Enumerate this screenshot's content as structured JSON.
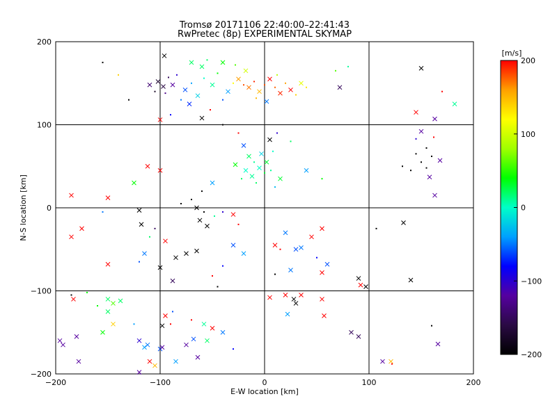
{
  "chart_data": {
    "type": "scatter",
    "title": "Tromsø 20171106 22:40:00–22:41:43",
    "subtitle": "RwPretec (8p) EXPERIMENTAL SKYMAP",
    "xlabel": "E-W location [km]",
    "ylabel": "N-S location [km]",
    "xlim": [
      -200,
      200
    ],
    "ylim": [
      -200,
      200
    ],
    "xticks": [
      -200,
      -100,
      0,
      100,
      200
    ],
    "yticks": [
      -200,
      -100,
      0,
      100,
      200
    ],
    "xtick_labels": [
      "−200",
      "−100",
      "0",
      "100",
      "200"
    ],
    "ytick_labels": [
      "−200",
      "−100",
      "0",
      "100",
      "200"
    ],
    "grid": true,
    "marker_types": [
      "dot",
      "x"
    ],
    "colorbar": {
      "label": "[m/s]",
      "range": [
        -200,
        200
      ],
      "ticks": [
        -200,
        -100,
        0,
        100,
        200
      ],
      "tick_labels": [
        "−200",
        "−100",
        "0",
        "100",
        "200"
      ],
      "colormap": [
        "#000000",
        "#2a0a44",
        "#5500a0",
        "#0000ff",
        "#00a0ff",
        "#00ffc8",
        "#00ff00",
        "#a0ff00",
        "#ffff00",
        "#ffa000",
        "#ff0000"
      ]
    },
    "points": [
      {
        "x": -102,
        "y": 152,
        "v": -170,
        "m": "x"
      },
      {
        "x": -97,
        "y": 146,
        "v": -160,
        "m": "x"
      },
      {
        "x": -92,
        "y": 157,
        "v": -150,
        "m": "dot"
      },
      {
        "x": -105,
        "y": 140,
        "v": -180,
        "m": "dot"
      },
      {
        "x": -88,
        "y": 148,
        "v": -120,
        "m": "x"
      },
      {
        "x": -95,
        "y": 138,
        "v": -130,
        "m": "dot"
      },
      {
        "x": -110,
        "y": 148,
        "v": -140,
        "m": "x"
      },
      {
        "x": -84,
        "y": 160,
        "v": -100,
        "m": "dot"
      },
      {
        "x": -76,
        "y": 142,
        "v": -60,
        "m": "x"
      },
      {
        "x": -70,
        "y": 150,
        "v": -40,
        "m": "dot"
      },
      {
        "x": -64,
        "y": 135,
        "v": -20,
        "m": "x"
      },
      {
        "x": -58,
        "y": 156,
        "v": 0,
        "m": "dot"
      },
      {
        "x": -50,
        "y": 148,
        "v": 10,
        "m": "x"
      },
      {
        "x": -45,
        "y": 162,
        "v": 40,
        "m": "dot"
      },
      {
        "x": -60,
        "y": 170,
        "v": 20,
        "m": "x"
      },
      {
        "x": -80,
        "y": 130,
        "v": -50,
        "m": "dot"
      },
      {
        "x": -72,
        "y": 125,
        "v": -70,
        "m": "x"
      },
      {
        "x": -40,
        "y": 130,
        "v": -60,
        "m": "dot"
      },
      {
        "x": -35,
        "y": 140,
        "v": -40,
        "m": "x"
      },
      {
        "x": -30,
        "y": 150,
        "v": 120,
        "m": "dot"
      },
      {
        "x": -25,
        "y": 155,
        "v": 160,
        "m": "x"
      },
      {
        "x": -20,
        "y": 148,
        "v": 180,
        "m": "dot"
      },
      {
        "x": -15,
        "y": 145,
        "v": 170,
        "m": "x"
      },
      {
        "x": -10,
        "y": 152,
        "v": 190,
        "m": "dot"
      },
      {
        "x": -5,
        "y": 140,
        "v": 150,
        "m": "x"
      },
      {
        "x": 0,
        "y": 148,
        "v": 180,
        "m": "dot"
      },
      {
        "x": 5,
        "y": 155,
        "v": 200,
        "m": "x"
      },
      {
        "x": 10,
        "y": 145,
        "v": 175,
        "m": "dot"
      },
      {
        "x": 15,
        "y": 138,
        "v": 190,
        "m": "x"
      },
      {
        "x": 20,
        "y": 150,
        "v": 160,
        "m": "dot"
      },
      {
        "x": 25,
        "y": 142,
        "v": 200,
        "m": "x"
      },
      {
        "x": 30,
        "y": 136,
        "v": 140,
        "m": "dot"
      },
      {
        "x": 35,
        "y": 150,
        "v": 110,
        "m": "x"
      },
      {
        "x": 40,
        "y": 145,
        "v": 130,
        "m": "dot"
      },
      {
        "x": -8,
        "y": 132,
        "v": 150,
        "m": "dot"
      },
      {
        "x": 2,
        "y": 128,
        "v": -50,
        "m": "x"
      },
      {
        "x": 12,
        "y": 160,
        "v": 90,
        "m": "dot"
      },
      {
        "x": -18,
        "y": 165,
        "v": 100,
        "m": "x"
      },
      {
        "x": -28,
        "y": 172,
        "v": 60,
        "m": "dot"
      },
      {
        "x": -40,
        "y": 175,
        "v": 40,
        "m": "x"
      },
      {
        "x": -55,
        "y": 178,
        "v": 20,
        "m": "dot"
      },
      {
        "x": -70,
        "y": 175,
        "v": 20,
        "m": "x"
      },
      {
        "x": -96,
        "y": 183,
        "v": -200,
        "m": "x"
      },
      {
        "x": -140,
        "y": 160,
        "v": 140,
        "m": "dot"
      },
      {
        "x": -155,
        "y": 175,
        "v": -200,
        "m": "dot"
      },
      {
        "x": -130,
        "y": 130,
        "v": -200,
        "m": "dot"
      },
      {
        "x": 72,
        "y": 145,
        "v": -150,
        "m": "x"
      },
      {
        "x": 68,
        "y": 165,
        "v": 60,
        "m": "dot"
      },
      {
        "x": 80,
        "y": 170,
        "v": 10,
        "m": "dot"
      },
      {
        "x": 150,
        "y": 168,
        "v": -200,
        "m": "x"
      },
      {
        "x": 170,
        "y": 140,
        "v": 200,
        "m": "dot"
      },
      {
        "x": 182,
        "y": 125,
        "v": 10,
        "m": "x"
      },
      {
        "x": 145,
        "y": 115,
        "v": 200,
        "m": "x"
      },
      {
        "x": 163,
        "y": 107,
        "v": -120,
        "m": "x"
      },
      {
        "x": -100,
        "y": 106,
        "v": 200,
        "m": "x"
      },
      {
        "x": -90,
        "y": 112,
        "v": -80,
        "m": "dot"
      },
      {
        "x": -60,
        "y": 108,
        "v": -200,
        "m": "x"
      },
      {
        "x": -52,
        "y": 118,
        "v": 200,
        "m": "dot"
      },
      {
        "x": -40,
        "y": 100,
        "v": -200,
        "m": "dot"
      },
      {
        "x": -25,
        "y": 90,
        "v": 200,
        "m": "dot"
      },
      {
        "x": -20,
        "y": 75,
        "v": -60,
        "m": "x"
      },
      {
        "x": -15,
        "y": 62,
        "v": 20,
        "m": "x"
      },
      {
        "x": -10,
        "y": 55,
        "v": 10,
        "m": "dot"
      },
      {
        "x": -5,
        "y": 48,
        "v": 0,
        "m": "x"
      },
      {
        "x": 0,
        "y": 42,
        "v": 30,
        "m": "dot"
      },
      {
        "x": -12,
        "y": 38,
        "v": 10,
        "m": "x"
      },
      {
        "x": -8,
        "y": 30,
        "v": 20,
        "m": "dot"
      },
      {
        "x": -18,
        "y": 45,
        "v": 0,
        "m": "x"
      },
      {
        "x": -22,
        "y": 35,
        "v": 20,
        "m": "dot"
      },
      {
        "x": 2,
        "y": 55,
        "v": 30,
        "m": "x"
      },
      {
        "x": 6,
        "y": 45,
        "v": 10,
        "m": "dot"
      },
      {
        "x": -3,
        "y": 65,
        "v": -20,
        "m": "x"
      },
      {
        "x": 8,
        "y": 68,
        "v": 0,
        "m": "dot"
      },
      {
        "x": -28,
        "y": 52,
        "v": 40,
        "m": "x"
      },
      {
        "x": 10,
        "y": 25,
        "v": -30,
        "m": "dot"
      },
      {
        "x": 15,
        "y": 35,
        "v": 30,
        "m": "x"
      },
      {
        "x": 5,
        "y": 82,
        "v": -200,
        "m": "x"
      },
      {
        "x": 12,
        "y": 90,
        "v": -100,
        "m": "dot"
      },
      {
        "x": 25,
        "y": 80,
        "v": 20,
        "m": "dot"
      },
      {
        "x": 40,
        "y": 45,
        "v": -40,
        "m": "x"
      },
      {
        "x": 55,
        "y": 35,
        "v": 40,
        "m": "dot"
      },
      {
        "x": -50,
        "y": 30,
        "v": -40,
        "m": "x"
      },
      {
        "x": -60,
        "y": 20,
        "v": -200,
        "m": "dot"
      },
      {
        "x": -70,
        "y": 10,
        "v": -200,
        "m": "dot"
      },
      {
        "x": -80,
        "y": 5,
        "v": -200,
        "m": "dot"
      },
      {
        "x": -65,
        "y": 0,
        "v": -200,
        "m": "x"
      },
      {
        "x": -58,
        "y": -5,
        "v": -200,
        "m": "dot"
      },
      {
        "x": -62,
        "y": -15,
        "v": -200,
        "m": "x"
      },
      {
        "x": -55,
        "y": -22,
        "v": -200,
        "m": "x"
      },
      {
        "x": -48,
        "y": -10,
        "v": 10,
        "m": "dot"
      },
      {
        "x": -40,
        "y": -5,
        "v": -100,
        "m": "dot"
      },
      {
        "x": -30,
        "y": -8,
        "v": 200,
        "m": "x"
      },
      {
        "x": -25,
        "y": -20,
        "v": 200,
        "m": "dot"
      },
      {
        "x": -100,
        "y": 45,
        "v": 200,
        "m": "x"
      },
      {
        "x": -112,
        "y": 50,
        "v": 200,
        "m": "x"
      },
      {
        "x": -125,
        "y": 30,
        "v": 40,
        "m": "x"
      },
      {
        "x": -185,
        "y": 15,
        "v": 200,
        "m": "x"
      },
      {
        "x": -150,
        "y": 12,
        "v": 200,
        "m": "x"
      },
      {
        "x": -155,
        "y": -5,
        "v": -50,
        "m": "dot"
      },
      {
        "x": -175,
        "y": -25,
        "v": 200,
        "m": "x"
      },
      {
        "x": -185,
        "y": -35,
        "v": 200,
        "m": "x"
      },
      {
        "x": -150,
        "y": -68,
        "v": 200,
        "m": "x"
      },
      {
        "x": -120,
        "y": -3,
        "v": -200,
        "m": "x"
      },
      {
        "x": -118,
        "y": -20,
        "v": -200,
        "m": "x"
      },
      {
        "x": -105,
        "y": -25,
        "v": -150,
        "m": "dot"
      },
      {
        "x": -110,
        "y": -35,
        "v": 20,
        "m": "dot"
      },
      {
        "x": -115,
        "y": -55,
        "v": -50,
        "m": "x"
      },
      {
        "x": -120,
        "y": -65,
        "v": -60,
        "m": "dot"
      },
      {
        "x": -100,
        "y": -72,
        "v": -200,
        "m": "x"
      },
      {
        "x": -85,
        "y": -60,
        "v": -200,
        "m": "x"
      },
      {
        "x": -75,
        "y": -55,
        "v": -200,
        "m": "x"
      },
      {
        "x": -65,
        "y": -52,
        "v": -200,
        "m": "x"
      },
      {
        "x": -88,
        "y": -88,
        "v": -150,
        "m": "x"
      },
      {
        "x": -50,
        "y": -82,
        "v": 200,
        "m": "dot"
      },
      {
        "x": -45,
        "y": -95,
        "v": -200,
        "m": "dot"
      },
      {
        "x": -40,
        "y": -70,
        "v": -80,
        "m": "dot"
      },
      {
        "x": -95,
        "y": -40,
        "v": 200,
        "m": "x"
      },
      {
        "x": -30,
        "y": -45,
        "v": -60,
        "m": "x"
      },
      {
        "x": -20,
        "y": -55,
        "v": -40,
        "m": "x"
      },
      {
        "x": 10,
        "y": -45,
        "v": 200,
        "m": "x"
      },
      {
        "x": 15,
        "y": -50,
        "v": 200,
        "m": "dot"
      },
      {
        "x": 20,
        "y": -30,
        "v": -50,
        "m": "x"
      },
      {
        "x": 30,
        "y": -50,
        "v": -60,
        "m": "x"
      },
      {
        "x": 35,
        "y": -48,
        "v": -50,
        "m": "x"
      },
      {
        "x": 45,
        "y": -35,
        "v": 200,
        "m": "x"
      },
      {
        "x": 55,
        "y": -25,
        "v": 200,
        "m": "x"
      },
      {
        "x": 50,
        "y": -60,
        "v": -80,
        "m": "dot"
      },
      {
        "x": 60,
        "y": -68,
        "v": -60,
        "m": "x"
      },
      {
        "x": 55,
        "y": -78,
        "v": 200,
        "m": "x"
      },
      {
        "x": 25,
        "y": -75,
        "v": -50,
        "m": "x"
      },
      {
        "x": 10,
        "y": -80,
        "v": -200,
        "m": "dot"
      },
      {
        "x": 5,
        "y": -108,
        "v": 200,
        "m": "x"
      },
      {
        "x": 20,
        "y": -105,
        "v": 200,
        "m": "x"
      },
      {
        "x": 28,
        "y": -110,
        "v": -200,
        "m": "x"
      },
      {
        "x": 30,
        "y": -115,
        "v": -200,
        "m": "x"
      },
      {
        "x": 35,
        "y": -105,
        "v": 200,
        "m": "x"
      },
      {
        "x": 22,
        "y": -128,
        "v": -40,
        "m": "x"
      },
      {
        "x": 55,
        "y": -110,
        "v": 200,
        "m": "x"
      },
      {
        "x": 57,
        "y": -130,
        "v": 200,
        "m": "x"
      },
      {
        "x": 90,
        "y": -85,
        "v": -200,
        "m": "x"
      },
      {
        "x": 97,
        "y": -95,
        "v": -200,
        "m": "x"
      },
      {
        "x": 92,
        "y": -93,
        "v": 200,
        "m": "x"
      },
      {
        "x": 140,
        "y": -87,
        "v": -200,
        "m": "x"
      },
      {
        "x": 133,
        "y": -18,
        "v": -200,
        "m": "x"
      },
      {
        "x": 107,
        "y": -25,
        "v": -200,
        "m": "dot"
      },
      {
        "x": 83,
        "y": -150,
        "v": -150,
        "m": "x"
      },
      {
        "x": 90,
        "y": -155,
        "v": -150,
        "m": "x"
      },
      {
        "x": 113,
        "y": -185,
        "v": -120,
        "m": "x"
      },
      {
        "x": 121,
        "y": -185,
        "v": 150,
        "m": "x"
      },
      {
        "x": 122,
        "y": -188,
        "v": 200,
        "m": "dot"
      },
      {
        "x": 166,
        "y": -164,
        "v": -120,
        "m": "x"
      },
      {
        "x": 160,
        "y": -142,
        "v": -200,
        "m": "dot"
      },
      {
        "x": 132,
        "y": 50,
        "v": -200,
        "m": "dot"
      },
      {
        "x": 140,
        "y": 45,
        "v": -200,
        "m": "dot"
      },
      {
        "x": 150,
        "y": 55,
        "v": -200,
        "m": "dot"
      },
      {
        "x": 155,
        "y": 48,
        "v": -200,
        "m": "dot"
      },
      {
        "x": 160,
        "y": 62,
        "v": -200,
        "m": "dot"
      },
      {
        "x": 145,
        "y": 65,
        "v": -200,
        "m": "dot"
      },
      {
        "x": 168,
        "y": 57,
        "v": -120,
        "m": "x"
      },
      {
        "x": 158,
        "y": 37,
        "v": -120,
        "m": "x"
      },
      {
        "x": 163,
        "y": 15,
        "v": -120,
        "m": "x"
      },
      {
        "x": 150,
        "y": 92,
        "v": -120,
        "m": "x"
      },
      {
        "x": 155,
        "y": 72,
        "v": -200,
        "m": "dot"
      },
      {
        "x": 145,
        "y": 83,
        "v": -100,
        "m": "dot"
      },
      {
        "x": 162,
        "y": 85,
        "v": 200,
        "m": "dot"
      },
      {
        "x": -138,
        "y": -112,
        "v": 20,
        "m": "x"
      },
      {
        "x": -145,
        "y": -115,
        "v": 60,
        "m": "x"
      },
      {
        "x": -150,
        "y": -110,
        "v": 20,
        "m": "x"
      },
      {
        "x": -160,
        "y": -118,
        "v": 40,
        "m": "dot"
      },
      {
        "x": -170,
        "y": -102,
        "v": 40,
        "m": "dot"
      },
      {
        "x": -185,
        "y": -105,
        "v": -200,
        "m": "dot"
      },
      {
        "x": -183,
        "y": -110,
        "v": 200,
        "m": "x"
      },
      {
        "x": -150,
        "y": -125,
        "v": 20,
        "m": "x"
      },
      {
        "x": -155,
        "y": -150,
        "v": 40,
        "m": "x"
      },
      {
        "x": -145,
        "y": -140,
        "v": 140,
        "m": "x"
      },
      {
        "x": -180,
        "y": -155,
        "v": -120,
        "m": "x"
      },
      {
        "x": -196,
        "y": -160,
        "v": -120,
        "m": "x"
      },
      {
        "x": -193,
        "y": -165,
        "v": -120,
        "m": "x"
      },
      {
        "x": -178,
        "y": -185,
        "v": -120,
        "m": "x"
      },
      {
        "x": -125,
        "y": -140,
        "v": -40,
        "m": "dot"
      },
      {
        "x": -120,
        "y": -160,
        "v": -100,
        "m": "x"
      },
      {
        "x": -115,
        "y": -168,
        "v": -40,
        "m": "x"
      },
      {
        "x": -112,
        "y": -165,
        "v": -50,
        "m": "x"
      },
      {
        "x": -100,
        "y": -170,
        "v": -60,
        "m": "x"
      },
      {
        "x": -98,
        "y": -168,
        "v": -120,
        "m": "x"
      },
      {
        "x": -110,
        "y": -185,
        "v": 200,
        "m": "x"
      },
      {
        "x": -105,
        "y": -190,
        "v": 150,
        "m": "x"
      },
      {
        "x": -120,
        "y": -198,
        "v": -120,
        "m": "x"
      },
      {
        "x": -85,
        "y": -185,
        "v": -40,
        "m": "x"
      },
      {
        "x": -75,
        "y": -165,
        "v": -120,
        "m": "x"
      },
      {
        "x": -68,
        "y": -158,
        "v": -60,
        "m": "x"
      },
      {
        "x": -55,
        "y": -160,
        "v": 20,
        "m": "x"
      },
      {
        "x": -50,
        "y": -145,
        "v": 200,
        "m": "x"
      },
      {
        "x": -58,
        "y": -140,
        "v": 10,
        "m": "x"
      },
      {
        "x": -40,
        "y": -150,
        "v": -50,
        "m": "x"
      },
      {
        "x": -70,
        "y": -135,
        "v": 200,
        "m": "dot"
      },
      {
        "x": -90,
        "y": -140,
        "v": 200,
        "m": "dot"
      },
      {
        "x": -98,
        "y": -142,
        "v": -200,
        "m": "x"
      },
      {
        "x": -88,
        "y": -125,
        "v": -60,
        "m": "dot"
      },
      {
        "x": -95,
        "y": -130,
        "v": 200,
        "m": "x"
      },
      {
        "x": -30,
        "y": -170,
        "v": -80,
        "m": "dot"
      },
      {
        "x": -64,
        "y": -180,
        "v": -120,
        "m": "x"
      }
    ]
  }
}
